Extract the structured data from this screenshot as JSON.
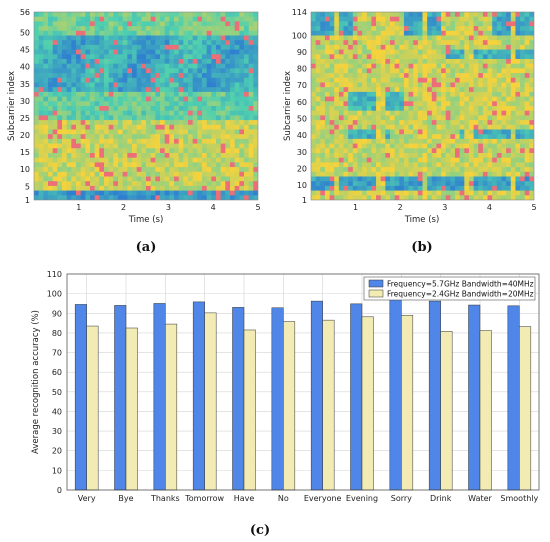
{
  "panels": {
    "a": {
      "label": "(a)"
    },
    "b": {
      "label": "(b)"
    },
    "c": {
      "label": "(c)"
    }
  },
  "colors": {
    "series1": "#4f86e8",
    "series2": "#f2ecb4",
    "heat_yellow": "#f6d23c",
    "heat_blue": "#2f7fd0",
    "heat_teal": "#4fd0b0"
  },
  "chart_data": [
    {
      "id": "a",
      "type": "heatmap",
      "title": "",
      "xlabel": "Time (s)",
      "ylabel": "Subcarrier index",
      "xlim": [
        0,
        5
      ],
      "ylim": [
        1,
        56
      ],
      "xticks": [
        1,
        2,
        3,
        4,
        5
      ],
      "yticks": [
        1,
        5,
        10,
        15,
        20,
        25,
        30,
        35,
        40,
        45,
        50,
        56
      ]
    },
    {
      "id": "b",
      "type": "heatmap",
      "title": "",
      "xlabel": "Time (s)",
      "ylabel": "Subcarrier index",
      "xlim": [
        0,
        5
      ],
      "ylim": [
        1,
        114
      ],
      "xticks": [
        1,
        2,
        3,
        4,
        5
      ],
      "yticks": [
        1,
        10,
        20,
        30,
        40,
        50,
        60,
        70,
        80,
        90,
        100,
        114
      ]
    },
    {
      "id": "c",
      "type": "bar",
      "title": "",
      "xlabel": "",
      "ylabel": "Average  recognition accuracy (%)",
      "ylim": [
        0,
        110
      ],
      "yticks": [
        0,
        10,
        20,
        30,
        40,
        50,
        60,
        70,
        80,
        90,
        100,
        110
      ],
      "grid": true,
      "legend_position": "top-right",
      "categories": [
        "Very",
        "Bye",
        "Thanks",
        "Tomorrow",
        "Have",
        "No",
        "Everyone",
        "Evening",
        "Sorry",
        "Drink",
        "Water",
        "Smoothly"
      ],
      "series": [
        {
          "name": "Frequency=5.7GHz Bandwidth=40MHz",
          "values": [
            94.5,
            94,
            95,
            95.8,
            93,
            92.8,
            96.2,
            94.8,
            96.8,
            96.2,
            94.2,
            93.8
          ]
        },
        {
          "name": "Frequency=2.4GHz Bandwidth=20MHz",
          "values": [
            83.5,
            82.5,
            84.5,
            90.2,
            81.5,
            85.8,
            86.5,
            88.2,
            89,
            80.8,
            81.2,
            83.2
          ]
        }
      ]
    }
  ]
}
